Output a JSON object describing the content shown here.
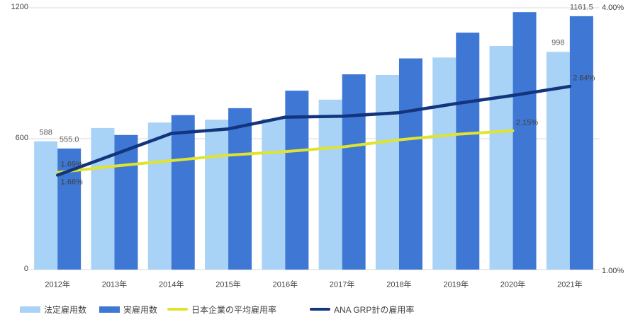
{
  "chart_data": {
    "type": "combo-bar-line",
    "title": "",
    "categories": [
      "2012年",
      "2013年",
      "2014年",
      "2015年",
      "2016年",
      "2017年",
      "2018年",
      "2019年",
      "2020年",
      "2021年"
    ],
    "bar_series": [
      {
        "key": "legal-quota",
        "name": "法定雇用数",
        "color": "#A9D3F6",
        "values": [
          588,
          649,
          674,
          687,
          691,
          779,
          892,
          972,
          1025,
          998
        ]
      },
      {
        "key": "actual",
        "name": "実雇用数",
        "color": "#3E78D4",
        "values": [
          555,
          617,
          708,
          740,
          820,
          895,
          968,
          1086,
          1180,
          1161.5
        ]
      }
    ],
    "line_series": [
      {
        "key": "japan-avg-rate",
        "name": "日本企業の平均雇用率",
        "color": "#E0E42F",
        "values": [
          1.69,
          1.76,
          1.82,
          1.88,
          1.92,
          1.97,
          2.05,
          2.11,
          2.15
        ]
      },
      {
        "key": "ana-grp-rate",
        "name": "ANA GRP計の雇用率",
        "color": "#13357E",
        "values": [
          1.66,
          1.89,
          2.12,
          2.17,
          2.3,
          2.31,
          2.35,
          2.45,
          2.54,
          2.64
        ]
      }
    ],
    "left_axis": {
      "ticks": [
        {
          "value": 1200,
          "label": "1200"
        },
        {
          "value": 600,
          "label": "600"
        },
        {
          "value": 0,
          "label": "0"
        }
      ],
      "max": 1200,
      "grid": true
    },
    "right_axis": {
      "top_label": "4.00%",
      "bottom_label": "1.00%"
    },
    "data_labels": [
      {
        "target": "bar",
        "series": 0,
        "index": 0,
        "text": "588"
      },
      {
        "target": "bar",
        "series": 1,
        "index": 0,
        "text": "555.0"
      },
      {
        "target": "bar",
        "series": 0,
        "index": 9,
        "text": "998"
      },
      {
        "target": "bar",
        "series": 1,
        "index": 9,
        "text": "1161.5"
      },
      {
        "target": "line",
        "series": 0,
        "index": 0,
        "text": "1.69%",
        "pos": "above"
      },
      {
        "target": "line",
        "series": 1,
        "index": 0,
        "text": "1.66%",
        "pos": "below"
      },
      {
        "target": "line",
        "series": 0,
        "index": 8,
        "text": "2.15%",
        "pos": "above"
      },
      {
        "target": "line",
        "series": 1,
        "index": 9,
        "text": "2.64%",
        "pos": "above"
      }
    ],
    "legend_position": "bottom-left"
  },
  "legend": [
    {
      "label": "法定雇用数",
      "type": "bar",
      "color": "#A9D3F6"
    },
    {
      "label": "実雇用数",
      "type": "bar",
      "color": "#3E78D4"
    },
    {
      "label": "日本企業の平均雇用率",
      "type": "line",
      "color": "#E0E42F"
    },
    {
      "label": "ANA GRP計の雇用率",
      "type": "line",
      "color": "#13357E"
    }
  ],
  "colors": {
    "gridline": "#D9D9D9",
    "axis_text": "#404040",
    "bar_label_text": "#595959",
    "background": "#FFFFFF"
  }
}
